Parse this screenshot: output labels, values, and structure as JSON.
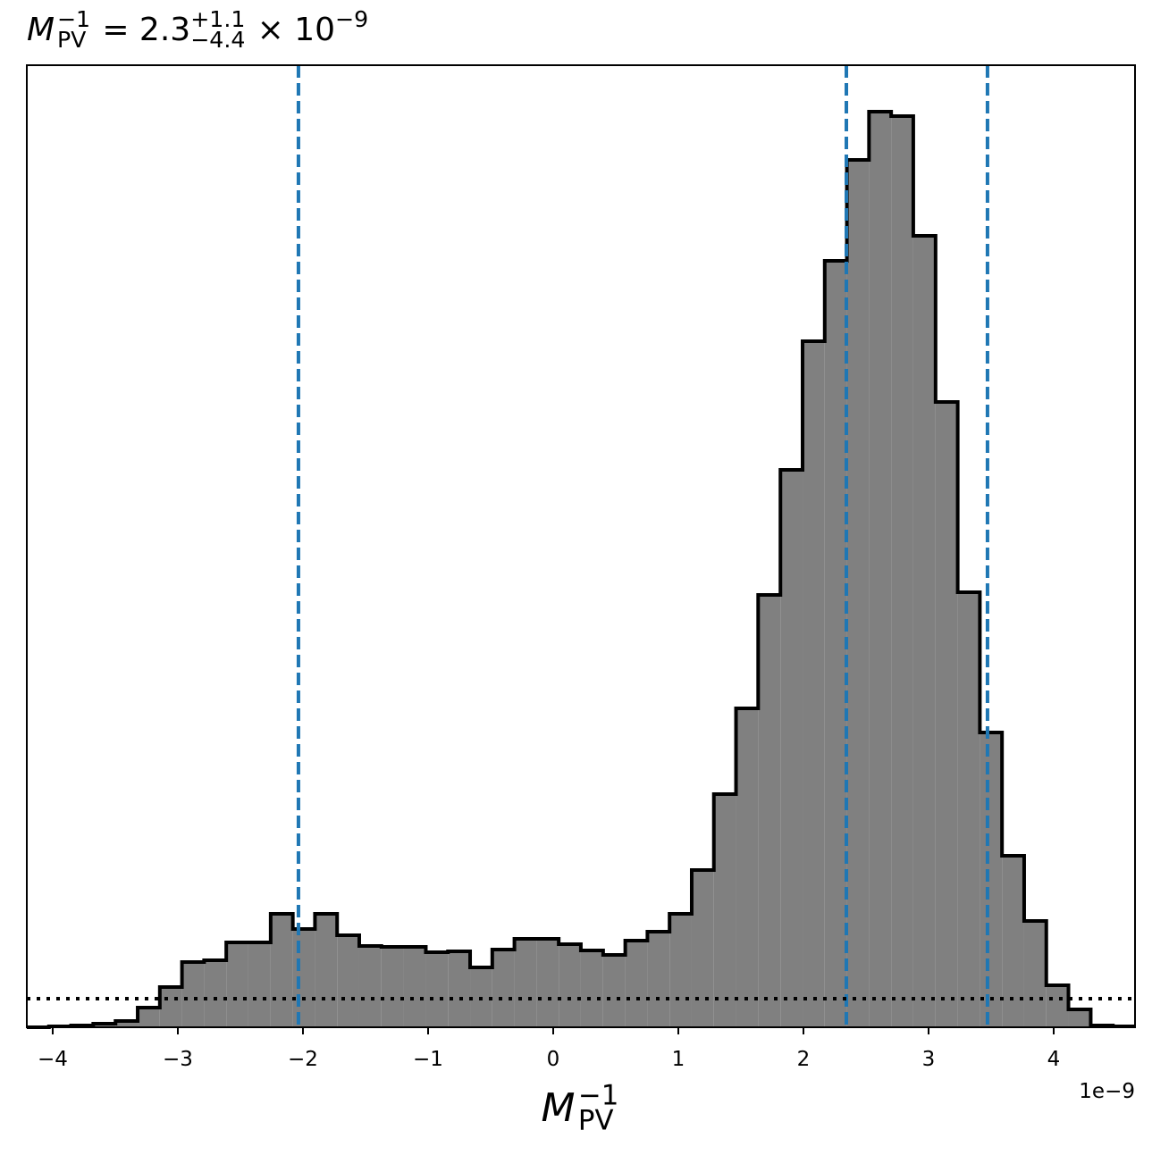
{
  "chart_data": {
    "type": "histogram",
    "title": {
      "symbol": "M",
      "sup": "−1",
      "sub": "PV",
      "equals": " = 2.3",
      "plus": "+1.1",
      "minus": "−4.4",
      "times": " × 10",
      "exp": "−9"
    },
    "xlabel": {
      "symbol": "M",
      "sup": "−1",
      "sub": "PV"
    },
    "offset_text": "1e−9",
    "bins": [
      -4.207,
      -4.03,
      -3.853,
      -3.676,
      -3.498,
      -3.321,
      -3.144,
      -2.967,
      -2.79,
      -2.613,
      -2.436,
      -2.258,
      -2.081,
      -1.904,
      -1.727,
      -1.55,
      -1.373,
      -1.196,
      -1.018,
      -0.841,
      -0.664,
      -0.487,
      -0.31,
      -0.133,
      0.044,
      0.221,
      0.399,
      0.576,
      0.753,
      0.93,
      1.107,
      1.284,
      1.461,
      1.638,
      1.816,
      1.993,
      2.17,
      2.347,
      2.524,
      2.701,
      2.878,
      3.056,
      3.233,
      3.41,
      3.587,
      3.764,
      3.941,
      4.118,
      4.296,
      4.473,
      4.65
    ],
    "values": [
      0,
      1,
      2,
      4,
      7,
      22,
      45,
      73,
      75,
      95,
      95,
      127,
      110,
      127,
      103,
      91,
      90,
      90,
      84,
      85,
      67,
      87,
      99,
      99,
      93,
      86,
      81,
      97,
      107,
      127,
      176,
      261,
      357,
      484,
      624,
      768,
      858,
      971,
      1025,
      1020,
      886,
      700,
      487,
      330,
      192,
      119,
      47,
      20,
      2,
      1
    ],
    "color": "#808080",
    "edge_color": "#000000",
    "xlim": [
      -4.207,
      4.65
    ],
    "ylim": [
      0,
      1077
    ],
    "xticks": [
      {
        "value": -4,
        "label": "−4"
      },
      {
        "value": -3,
        "label": "−3"
      },
      {
        "value": -2,
        "label": "−2"
      },
      {
        "value": -1,
        "label": "−1"
      },
      0,
      1,
      2,
      3,
      4
    ],
    "vlines": [
      -2.036,
      2.343,
      3.471
    ],
    "vline_color": "#1f77b4",
    "hline": 32,
    "hline_color": "#000000"
  }
}
